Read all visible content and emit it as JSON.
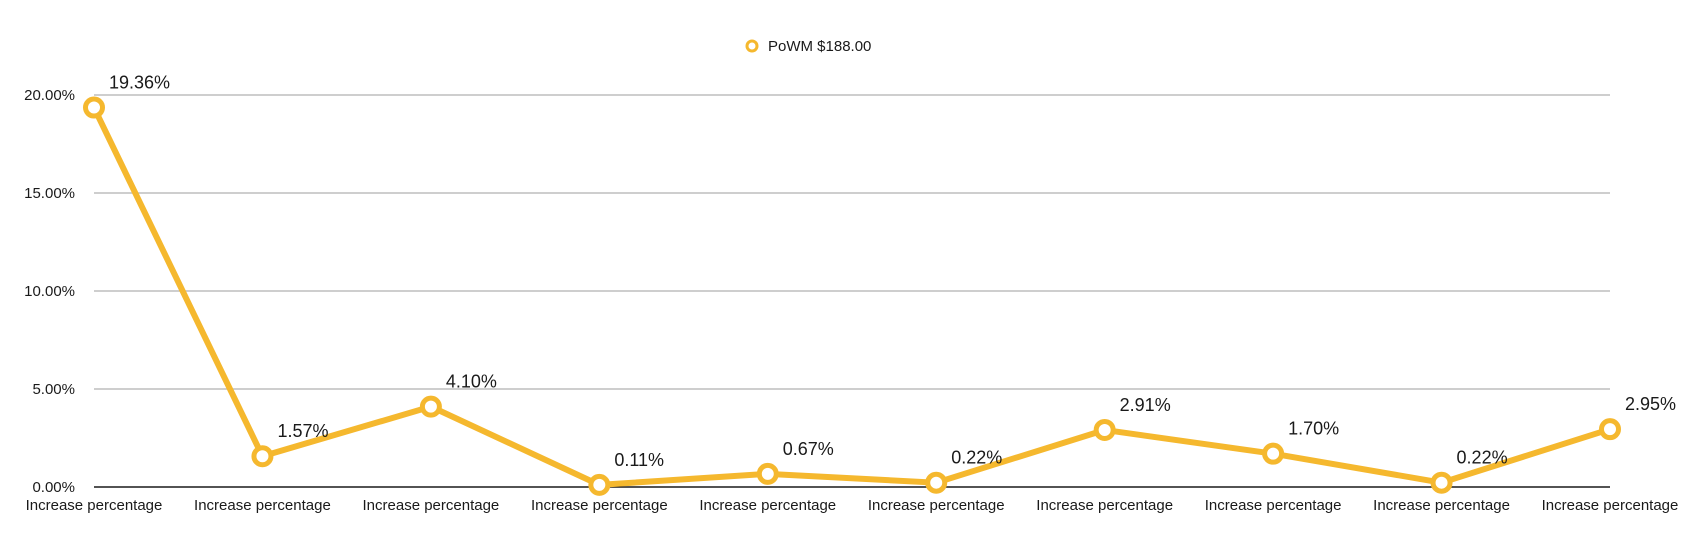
{
  "chart_data": {
    "type": "line",
    "categories": [
      "Increase percentage",
      "Increase percentage",
      "Increase percentage",
      "Increase percentage",
      "Increase percentage",
      "Increase percentage",
      "Increase percentage",
      "Increase percentage",
      "Increase percentage",
      "Increase percentage"
    ],
    "series": [
      {
        "name": "PoWM $188.00",
        "color": "#F5B82E",
        "values": [
          19.36,
          1.57,
          4.1,
          0.11,
          0.67,
          0.22,
          2.91,
          1.7,
          0.22,
          2.95
        ],
        "data_labels": [
          "19.36%",
          "1.57%",
          "4.10%",
          "0.11%",
          "0.67%",
          "0.22%",
          "2.91%",
          "1.70%",
          "0.22%",
          "2.95%"
        ]
      }
    ],
    "y_ticks": [
      0,
      5,
      10,
      15,
      20
    ],
    "y_tick_labels": [
      "0.00%",
      "5.00%",
      "10.00%",
      "15.00%",
      "20.00%"
    ],
    "ylim": [
      0,
      20
    ],
    "grid": true,
    "legend_position": "top-center",
    "title": "",
    "xlabel": "",
    "ylabel": ""
  }
}
